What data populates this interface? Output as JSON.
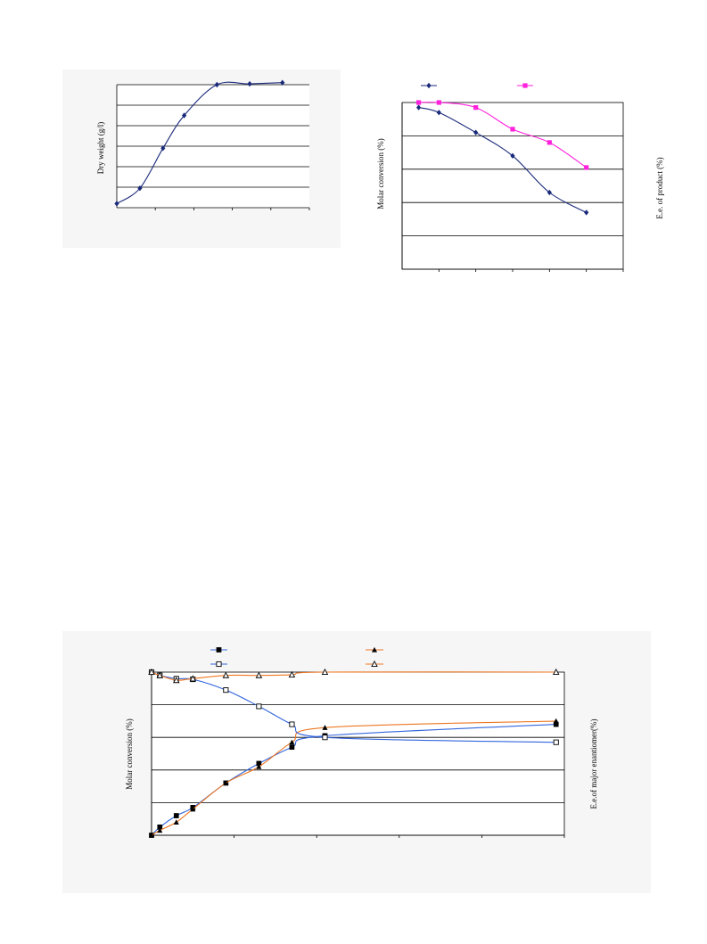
{
  "chart_data": [
    {
      "type": "line",
      "ylabel": "Dry weight (g/l)",
      "ylim": [
        0,
        6
      ],
      "xlim": [
        0,
        50
      ],
      "grid": true,
      "series": [
        {
          "color": "#1a2a7a",
          "marker": "diamond",
          "x": [
            0,
            6,
            12,
            17.5,
            26,
            34.5,
            43
          ],
          "y": [
            0.2,
            0.95,
            2.9,
            4.5,
            6.0,
            6.04,
            6.1
          ]
        }
      ]
    },
    {
      "type": "line",
      "ylabel": "Molar conversion (%)",
      "y2label": "E.e. of product (%)",
      "ylim": [
        0,
        5
      ],
      "xlim": [
        0,
        6
      ],
      "grid": true,
      "legend": "top",
      "series": [
        {
          "color": "#1a2a7a",
          "marker": "diamond",
          "x": [
            0.45,
            1,
            2,
            3,
            4,
            5
          ],
          "y": [
            4.85,
            4.7,
            4.1,
            3.4,
            2.3,
            1.7
          ]
        },
        {
          "color": "#ff22dd",
          "marker": "square",
          "x": [
            0.45,
            1,
            2,
            3,
            4,
            5
          ],
          "y": [
            5.0,
            5.0,
            4.85,
            4.2,
            3.8,
            3.05
          ]
        }
      ]
    },
    {
      "type": "line",
      "ylabel": "Molar conversion (%)",
      "y2label": "E.e.of major enantiomer(%)",
      "ylim": [
        0,
        5
      ],
      "xlim": [
        0,
        5
      ],
      "grid": true,
      "legend": "top",
      "series": [
        {
          "color": "#3366dd",
          "marker": "filled-square",
          "x": [
            0,
            0.1,
            0.3,
            0.5,
            0.9,
            1.3,
            1.7,
            2.1,
            4.9
          ],
          "y": [
            0,
            0.25,
            0.6,
            0.85,
            1.6,
            2.2,
            2.7,
            3.05,
            3.4
          ]
        },
        {
          "color": "#ee7722",
          "marker": "filled-triangle",
          "x": [
            0,
            0.1,
            0.3,
            0.5,
            0.9,
            1.3,
            1.7,
            2.1,
            4.9
          ],
          "y": [
            0,
            0.15,
            0.4,
            0.8,
            1.6,
            2.1,
            2.85,
            3.3,
            3.5
          ]
        },
        {
          "color": "#3366dd",
          "marker": "open-square",
          "x": [
            0,
            0.1,
            0.3,
            0.5,
            0.9,
            1.3,
            1.7,
            2.1,
            4.9
          ],
          "y": [
            5.0,
            4.9,
            4.8,
            4.78,
            4.45,
            3.95,
            3.4,
            3.0,
            2.85
          ]
        },
        {
          "color": "#ee7722",
          "marker": "open-triangle",
          "x": [
            0,
            0.1,
            0.3,
            0.5,
            0.9,
            1.3,
            1.7,
            2.1,
            4.9
          ],
          "y": [
            5.0,
            4.9,
            4.75,
            4.8,
            4.9,
            4.9,
            4.92,
            5.0,
            5.0
          ]
        }
      ]
    }
  ]
}
